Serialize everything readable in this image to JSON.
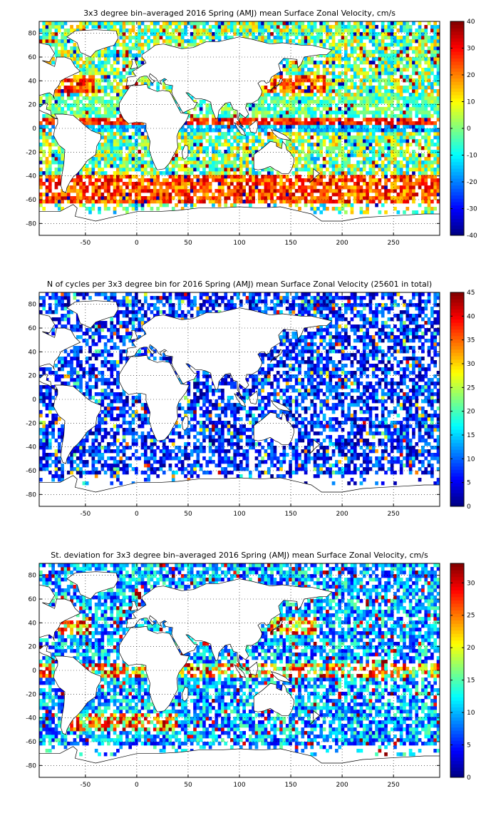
{
  "chart_data": [
    {
      "type": "heatmap",
      "title": "3x3 degree bin–averaged 2016 Spring (AMJ) mean Surface Zonal Velocity, cm/s",
      "xlabel": "",
      "ylabel": "",
      "xlim": [
        -95,
        295
      ],
      "ylim": [
        -90,
        90
      ],
      "x_ticks": [
        -50,
        0,
        50,
        100,
        150,
        200,
        250
      ],
      "y_ticks": [
        80,
        60,
        40,
        20,
        0,
        -20,
        -40,
        -60,
        -80
      ],
      "grid": true,
      "colormap": "jet",
      "bin_size_deg": 3,
      "colorbar": {
        "min": -40,
        "max": 40,
        "ticks": [
          40,
          30,
          20,
          10,
          0,
          -10,
          -20,
          -30,
          -40
        ]
      },
      "seed": 11
    },
    {
      "type": "heatmap",
      "title": "N of cycles per 3x3 degree bin for 2016 Spring (AMJ) mean Surface Zonal Velocity (25601 in total)",
      "xlabel": "",
      "ylabel": "",
      "xlim": [
        -95,
        295
      ],
      "ylim": [
        -90,
        90
      ],
      "x_ticks": [
        -50,
        0,
        50,
        100,
        150,
        200,
        250
      ],
      "y_ticks": [
        80,
        60,
        40,
        20,
        0,
        -20,
        -40,
        -60,
        -80
      ],
      "grid": true,
      "colormap": "jet",
      "bin_size_deg": 3,
      "total_cycles": 25601,
      "colorbar": {
        "min": 0,
        "max": 45,
        "ticks": [
          45,
          40,
          35,
          30,
          25,
          20,
          15,
          10,
          5,
          0
        ]
      },
      "seed": 23
    },
    {
      "type": "heatmap",
      "title": "St. deviation for 3x3 degree bin–averaged 2016 Spring (AMJ) mean Surface Zonal Velocity, cm/s",
      "xlabel": "",
      "ylabel": "",
      "xlim": [
        -95,
        295
      ],
      "ylim": [
        -90,
        90
      ],
      "x_ticks": [
        -50,
        0,
        50,
        100,
        150,
        200,
        250
      ],
      "y_ticks": [
        80,
        60,
        40,
        20,
        0,
        -20,
        -40,
        -60,
        -80
      ],
      "grid": true,
      "colormap": "jet",
      "bin_size_deg": 3,
      "colorbar": {
        "min": 0,
        "max": 33,
        "ticks": [
          30,
          25,
          20,
          15,
          10,
          5,
          0
        ]
      },
      "seed": 37
    }
  ]
}
